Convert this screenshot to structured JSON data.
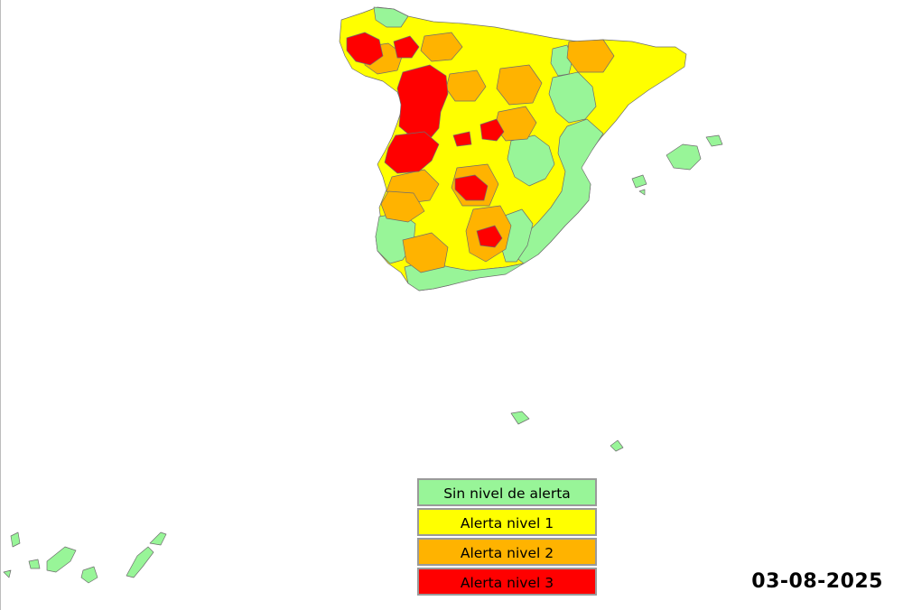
{
  "colors": {
    "sin_alerta": "#98f598",
    "nivel_1": "#ffff00",
    "nivel_2": "#ffb300",
    "nivel_3": "#ff0000"
  },
  "legend": [
    {
      "label": "Sin nivel de alerta",
      "color": "#98f598"
    },
    {
      "label": "Alerta nivel 1",
      "color": "#ffff00"
    },
    {
      "label": "Alerta nivel 2",
      "color": "#ffb300"
    },
    {
      "label": "Alerta nivel 3",
      "color": "#ff0000"
    }
  ],
  "date": "03-08-2025"
}
